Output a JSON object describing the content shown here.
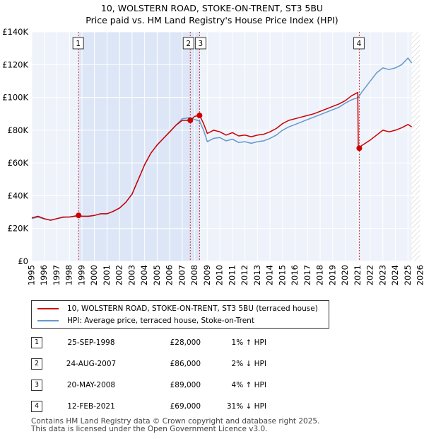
{
  "chart_data": {
    "type": "line",
    "title": "10, WOLSTERN ROAD, STOKE-ON-TRENT, ST3 5BU",
    "subtitle": "Price paid vs. HM Land Registry's House Price Index (HPI)",
    "ylim": [
      0,
      140000
    ],
    "xlim": [
      1995,
      2026
    ],
    "y_ticks": [
      {
        "value": 0,
        "label": "£0"
      },
      {
        "value": 20000,
        "label": "£20K"
      },
      {
        "value": 40000,
        "label": "£40K"
      },
      {
        "value": 60000,
        "label": "£60K"
      },
      {
        "value": 80000,
        "label": "£80K"
      },
      {
        "value": 100000,
        "label": "£100K"
      },
      {
        "value": 120000,
        "label": "£120K"
      },
      {
        "value": 140000,
        "label": "£140K"
      }
    ],
    "x_ticks": [
      "1995",
      "1996",
      "1997",
      "1998",
      "1999",
      "2000",
      "2001",
      "2002",
      "2003",
      "2004",
      "2005",
      "2006",
      "2007",
      "2008",
      "2009",
      "2010",
      "2011",
      "2012",
      "2013",
      "2014",
      "2015",
      "2016",
      "2017",
      "2018",
      "2019",
      "2020",
      "2021",
      "2022",
      "2023",
      "2024",
      "2025",
      "2026"
    ],
    "grid": true,
    "series": [
      {
        "name": "10, WOLSTERN ROAD, STOKE-ON-TRENT, ST3 5BU (terraced house)",
        "color": "#cc0000",
        "points": [
          [
            1995,
            26500
          ],
          [
            1995.5,
            27500
          ],
          [
            1996,
            26000
          ],
          [
            1996.5,
            25000
          ],
          [
            1997,
            26000
          ],
          [
            1997.5,
            27000
          ],
          [
            1998,
            27000
          ],
          [
            1998.73,
            28000
          ],
          [
            1999,
            27500
          ],
          [
            1999.5,
            27500
          ],
          [
            2000,
            28000
          ],
          [
            2000.5,
            29000
          ],
          [
            2001,
            29000
          ],
          [
            2001.5,
            30500
          ],
          [
            2002,
            32500
          ],
          [
            2002.5,
            36000
          ],
          [
            2003,
            41000
          ],
          [
            2003.5,
            50000
          ],
          [
            2004,
            59000
          ],
          [
            2004.5,
            66000
          ],
          [
            2005,
            71000
          ],
          [
            2005.5,
            75000
          ],
          [
            2006,
            79000
          ],
          [
            2006.5,
            83000
          ],
          [
            2007,
            86000
          ],
          [
            2007.64,
            86000
          ],
          [
            2008,
            88500
          ],
          [
            2008.38,
            89000
          ],
          [
            2008.7,
            84000
          ],
          [
            2009,
            78000
          ],
          [
            2009.5,
            80000
          ],
          [
            2010,
            79000
          ],
          [
            2010.5,
            77000
          ],
          [
            2011,
            78500
          ],
          [
            2011.5,
            76500
          ],
          [
            2012,
            77000
          ],
          [
            2012.5,
            76000
          ],
          [
            2013,
            77000
          ],
          [
            2013.5,
            77500
          ],
          [
            2014,
            79000
          ],
          [
            2014.5,
            81000
          ],
          [
            2015,
            84000
          ],
          [
            2015.5,
            86000
          ],
          [
            2016,
            87000
          ],
          [
            2016.5,
            88000
          ],
          [
            2017,
            89000
          ],
          [
            2017.5,
            90000
          ],
          [
            2018,
            91500
          ],
          [
            2018.5,
            93000
          ],
          [
            2019,
            94500
          ],
          [
            2019.5,
            96000
          ],
          [
            2020,
            98000
          ],
          [
            2020.5,
            101000
          ],
          [
            2021.0,
            103000
          ],
          [
            2021.04,
            69000
          ],
          [
            2021.3,
            70500
          ],
          [
            2021.6,
            72000
          ],
          [
            2022,
            74000
          ],
          [
            2022.5,
            77000
          ],
          [
            2023,
            80000
          ],
          [
            2023.5,
            79000
          ],
          [
            2024,
            80000
          ],
          [
            2024.5,
            81500
          ],
          [
            2025,
            83500
          ],
          [
            2025.3,
            82000
          ]
        ]
      },
      {
        "name": "HPI: Average price, terraced house, Stoke-on-Trent",
        "color": "#6699cc",
        "points": [
          [
            1995,
            26000
          ],
          [
            1995.5,
            27000
          ],
          [
            1996,
            25800
          ],
          [
            1996.5,
            25200
          ],
          [
            1997,
            26000
          ],
          [
            1997.5,
            26800
          ],
          [
            1998,
            27000
          ],
          [
            1998.73,
            27700
          ],
          [
            1999,
            27500
          ],
          [
            1999.5,
            27300
          ],
          [
            2000,
            28000
          ],
          [
            2000.5,
            29000
          ],
          [
            2001,
            29000
          ],
          [
            2001.5,
            30500
          ],
          [
            2002,
            32500
          ],
          [
            2002.5,
            36000
          ],
          [
            2003,
            41000
          ],
          [
            2003.5,
            50000
          ],
          [
            2004,
            59000
          ],
          [
            2004.5,
            66000
          ],
          [
            2005,
            71000
          ],
          [
            2005.5,
            75000
          ],
          [
            2006,
            79000
          ],
          [
            2006.5,
            83000
          ],
          [
            2007,
            87000
          ],
          [
            2007.64,
            87700
          ],
          [
            2008,
            86500
          ],
          [
            2008.38,
            85500
          ],
          [
            2008.7,
            80000
          ],
          [
            2009,
            73000
          ],
          [
            2009.5,
            75000
          ],
          [
            2010,
            75500
          ],
          [
            2010.5,
            73500
          ],
          [
            2011,
            74500
          ],
          [
            2011.5,
            72500
          ],
          [
            2012,
            73000
          ],
          [
            2012.5,
            72000
          ],
          [
            2013,
            73000
          ],
          [
            2013.5,
            73500
          ],
          [
            2014,
            75000
          ],
          [
            2014.5,
            77000
          ],
          [
            2015,
            80000
          ],
          [
            2015.5,
            82000
          ],
          [
            2016,
            83500
          ],
          [
            2016.5,
            85000
          ],
          [
            2017,
            86500
          ],
          [
            2017.5,
            88000
          ],
          [
            2018,
            89500
          ],
          [
            2018.5,
            91000
          ],
          [
            2019,
            92500
          ],
          [
            2019.5,
            94000
          ],
          [
            2020,
            96500
          ],
          [
            2020.5,
            98500
          ],
          [
            2021.04,
            100000
          ],
          [
            2021.3,
            103000
          ],
          [
            2021.6,
            106000
          ],
          [
            2022,
            110000
          ],
          [
            2022.5,
            115000
          ],
          [
            2023,
            118000
          ],
          [
            2023.5,
            117000
          ],
          [
            2024,
            118000
          ],
          [
            2024.5,
            120000
          ],
          [
            2025,
            124000
          ],
          [
            2025.3,
            121000
          ]
        ]
      }
    ],
    "markers": [
      {
        "label": "1",
        "x": 1998.73,
        "y": 28000
      },
      {
        "label": "2",
        "x": 2007.64,
        "y": 86000
      },
      {
        "label": "3",
        "x": 2008.38,
        "y": 89000
      },
      {
        "label": "4",
        "x": 2021.12,
        "y": 69000
      }
    ],
    "shaded_spans": [
      [
        1998.73,
        2008.38
      ]
    ],
    "legend": [
      {
        "label": "10, WOLSTERN ROAD, STOKE-ON-TRENT, ST3 5BU (terraced house)",
        "color": "#cc0000"
      },
      {
        "label": "HPI: Average price, terraced house, Stoke-on-Trent",
        "color": "#6699cc"
      }
    ]
  },
  "transactions": [
    {
      "num": "1",
      "date": "25-SEP-1998",
      "price": "£28,000",
      "hpi": "1% ↑ HPI"
    },
    {
      "num": "2",
      "date": "24-AUG-2007",
      "price": "£86,000",
      "hpi": "2% ↓ HPI"
    },
    {
      "num": "3",
      "date": "20-MAY-2008",
      "price": "£89,000",
      "hpi": "4% ↑ HPI"
    },
    {
      "num": "4",
      "date": "12-FEB-2021",
      "price": "£69,000",
      "hpi": "31% ↓ HPI"
    }
  ],
  "footer": {
    "line1": "Contains HM Land Registry data © Crown copyright and database right 2025.",
    "line2": "This data is licensed under the Open Government Licence v3.0."
  }
}
